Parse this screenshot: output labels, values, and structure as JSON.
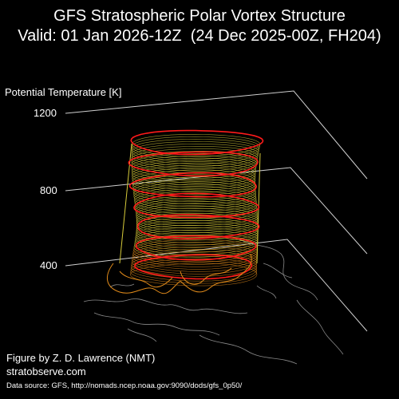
{
  "title": {
    "line1": "GFS Stratospheric Polar Vortex Structure",
    "line2": "Valid: 01 Jan 2026-12Z  (24 Dec 2025-00Z, FH204)"
  },
  "axis": {
    "label": "Potential Temperature [K]",
    "ticks": [
      "1200",
      "800",
      "400"
    ]
  },
  "credits": {
    "author": "Figure by Z. D. Lawrence (NMT)",
    "site": "stratobserve.com",
    "source": "Data source: GFS, http://nomads.ncep.noaa.gov:9090/dods/gfs_0p50/"
  },
  "colors": {
    "background": "#000000",
    "contour_red": "#ff1a1a",
    "inner_yellow": "#d8cc3a",
    "inner_orange": "#e08a1a",
    "coastline": "#8a8a8a",
    "axis_line": "#cfcfcf"
  }
}
